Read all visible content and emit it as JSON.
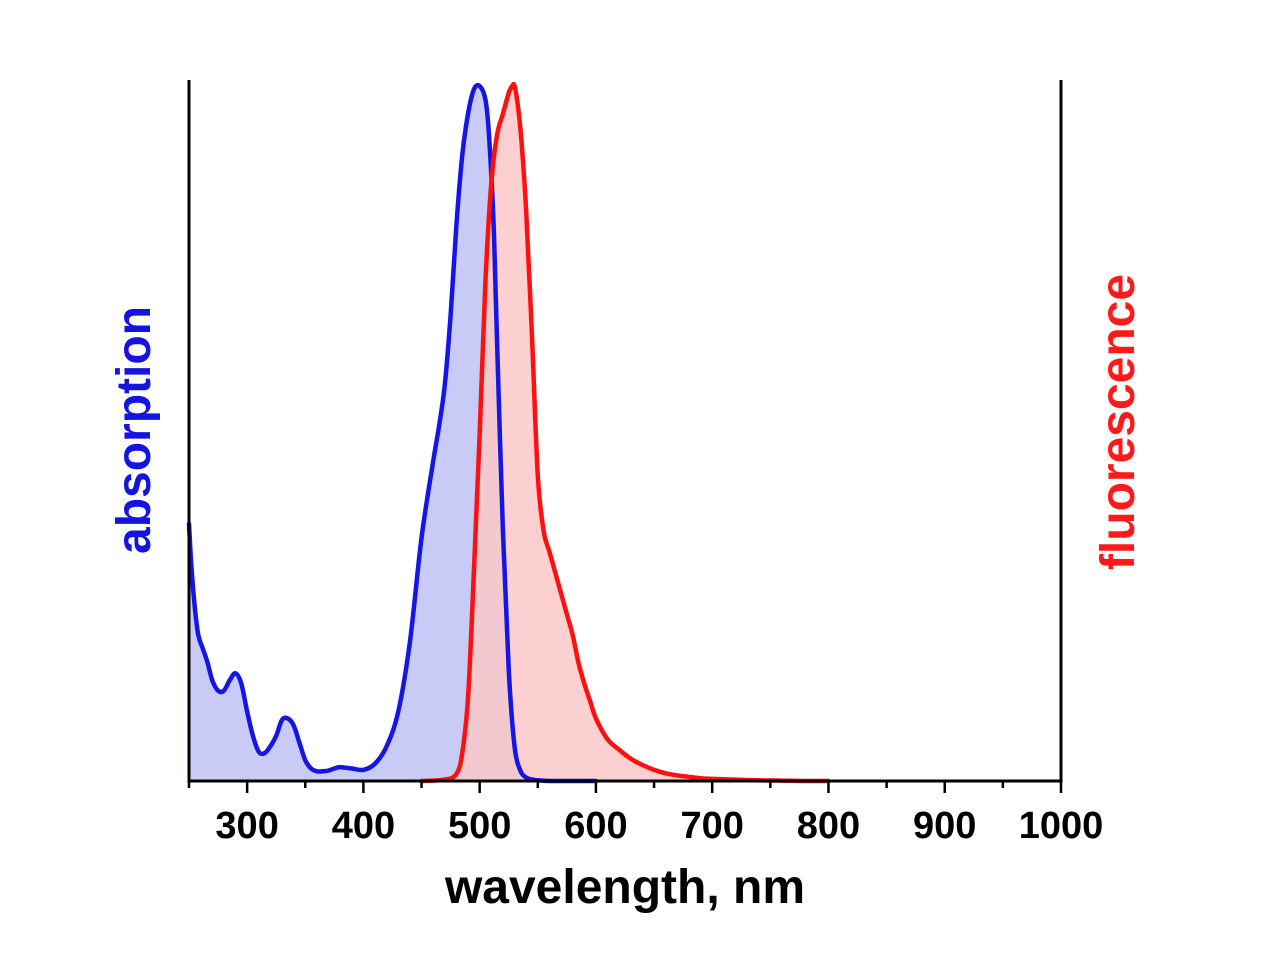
{
  "chart_data": {
    "type": "area",
    "xlabel": "wavelength, nm",
    "ylabel_left": "absorption",
    "ylabel_right": "fluorescence",
    "xlim": [
      250,
      1000
    ],
    "ylim": [
      0,
      1
    ],
    "xticks": [
      300,
      400,
      500,
      600,
      700,
      800,
      900,
      1000
    ],
    "xtick_labels": [
      "300",
      "400",
      "500",
      "600",
      "700",
      "800",
      "900",
      "1000"
    ],
    "y_tick_labels_shown": false,
    "grid": false,
    "legend": "none",
    "series": [
      {
        "axis": "left",
        "color": "#1515e6",
        "fill": "#c5c8f5",
        "x": [
          250,
          252,
          255,
          258,
          262,
          266,
          270,
          275,
          280,
          285,
          290,
          295,
          300,
          305,
          310,
          315,
          320,
          325,
          330,
          335,
          340,
          345,
          350,
          355,
          360,
          365,
          370,
          375,
          380,
          390,
          400,
          410,
          420,
          430,
          440,
          450,
          460,
          465,
          470,
          475,
          480,
          485,
          490,
          495,
          500,
          505,
          508,
          512,
          515,
          520,
          525,
          530,
          535,
          540,
          545,
          550,
          560,
          570,
          580,
          600
        ],
        "y": [
          0.37,
          0.31,
          0.25,
          0.21,
          0.19,
          0.17,
          0.145,
          0.13,
          0.13,
          0.145,
          0.155,
          0.14,
          0.1,
          0.065,
          0.042,
          0.04,
          0.05,
          0.065,
          0.088,
          0.09,
          0.08,
          0.055,
          0.03,
          0.018,
          0.014,
          0.014,
          0.015,
          0.018,
          0.02,
          0.018,
          0.016,
          0.025,
          0.05,
          0.1,
          0.2,
          0.35,
          0.46,
          0.51,
          0.57,
          0.67,
          0.8,
          0.9,
          0.96,
          0.995,
          1.0,
          0.98,
          0.93,
          0.8,
          0.63,
          0.36,
          0.16,
          0.05,
          0.015,
          0.005,
          0.002,
          0.001,
          0.0,
          0.0,
          0.0,
          0.0
        ]
      },
      {
        "axis": "right",
        "color": "#ff1010",
        "fill": "#fbc8c8",
        "x": [
          450,
          470,
          480,
          485,
          490,
          495,
          500,
          505,
          510,
          515,
          520,
          525,
          528,
          530,
          533,
          536,
          540,
          545,
          550,
          555,
          560,
          565,
          570,
          575,
          580,
          585,
          590,
          595,
          600,
          610,
          620,
          630,
          640,
          650,
          660,
          670,
          680,
          690,
          700,
          720,
          740,
          760,
          780,
          800
        ],
        "y": [
          0.0,
          0.002,
          0.01,
          0.04,
          0.12,
          0.3,
          0.5,
          0.72,
          0.86,
          0.93,
          0.96,
          0.99,
          1.0,
          1.0,
          0.97,
          0.92,
          0.82,
          0.64,
          0.44,
          0.36,
          0.33,
          0.3,
          0.27,
          0.24,
          0.21,
          0.17,
          0.14,
          0.115,
          0.09,
          0.06,
          0.045,
          0.032,
          0.023,
          0.016,
          0.011,
          0.008,
          0.006,
          0.004,
          0.003,
          0.002,
          0.001,
          0.0005,
          0.0,
          0.0
        ]
      }
    ]
  }
}
